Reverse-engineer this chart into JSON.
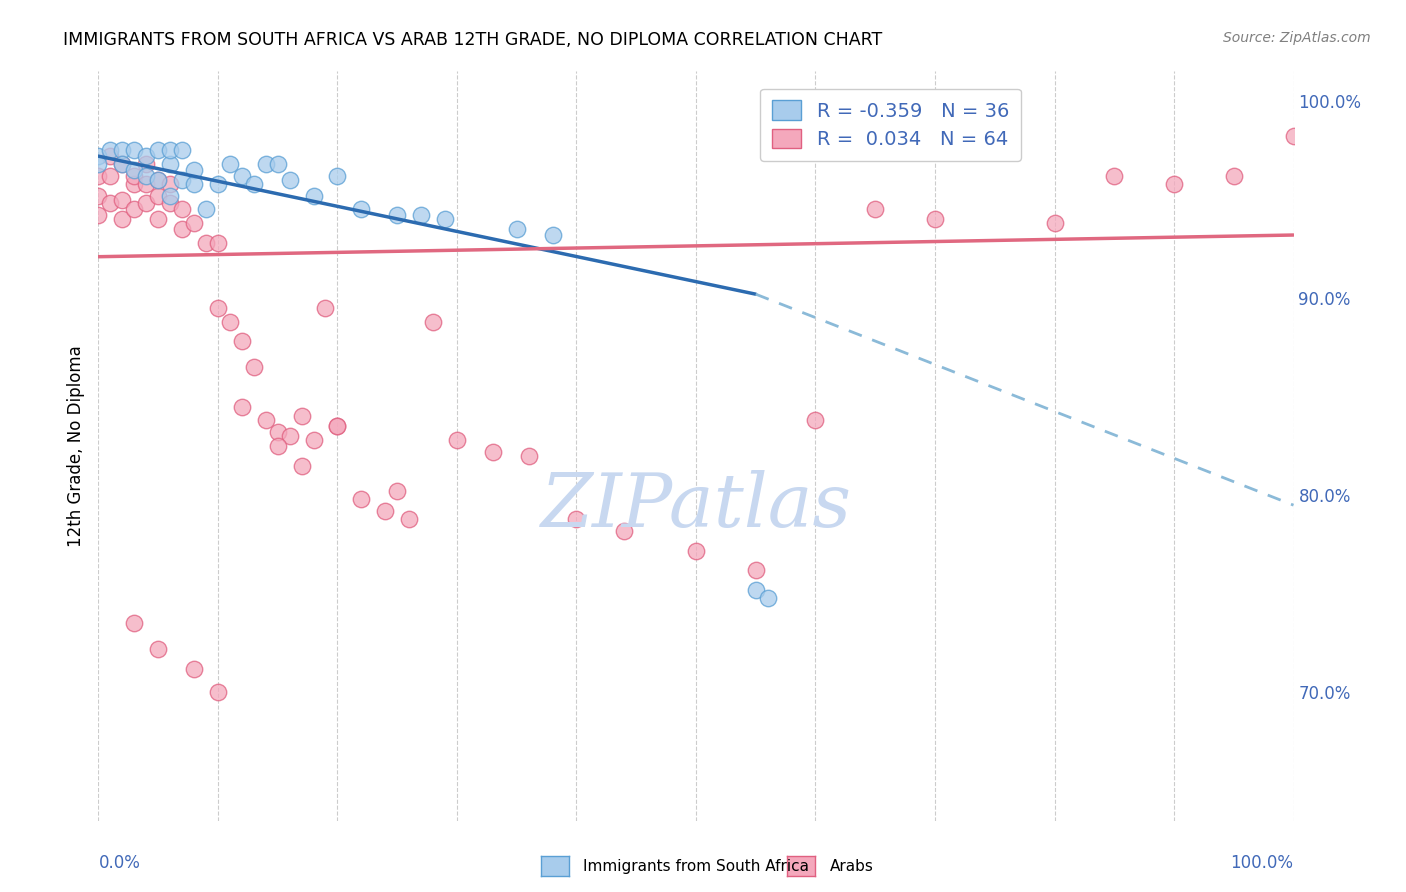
{
  "title": "IMMIGRANTS FROM SOUTH AFRICA VS ARAB 12TH GRADE, NO DIPLOMA CORRELATION CHART",
  "source": "Source: ZipAtlas.com",
  "ylabel": "12th Grade, No Diploma",
  "legend_label1": "Immigrants from South Africa",
  "legend_label2": "Arabs",
  "R1": -0.359,
  "N1": 36,
  "R2": 0.034,
  "N2": 64,
  "color_blue": "#A8CCEC",
  "color_pink": "#F4A8BC",
  "color_blue_line": "#5A9FD4",
  "color_pink_line": "#E06080",
  "color_blue_text": "#4169B8",
  "watermark_color": "#C8D8F0",
  "xlim": [
    0.0,
    1.0
  ],
  "ylim": [
    0.635,
    1.015
  ],
  "sa_line_x0": 0.0,
  "sa_line_y0": 0.972,
  "sa_line_x1": 0.55,
  "sa_line_y1": 0.902,
  "sa_line_dash_x1": 1.0,
  "sa_line_dash_y1": 0.795,
  "arab_line_x0": 0.0,
  "arab_line_y0": 0.921,
  "arab_line_x1": 1.0,
  "arab_line_y1": 0.932,
  "south_africa_x": [
    0.0,
    0.0,
    0.01,
    0.02,
    0.02,
    0.03,
    0.03,
    0.04,
    0.04,
    0.05,
    0.05,
    0.06,
    0.06,
    0.06,
    0.07,
    0.07,
    0.08,
    0.08,
    0.09,
    0.1,
    0.11,
    0.12,
    0.13,
    0.14,
    0.15,
    0.16,
    0.18,
    0.2,
    0.22,
    0.25,
    0.27,
    0.29,
    0.35,
    0.38,
    0.55,
    0.56
  ],
  "south_africa_y": [
    0.972,
    0.968,
    0.975,
    0.975,
    0.968,
    0.975,
    0.965,
    0.972,
    0.962,
    0.975,
    0.96,
    0.968,
    0.975,
    0.952,
    0.96,
    0.975,
    0.965,
    0.958,
    0.945,
    0.958,
    0.968,
    0.962,
    0.958,
    0.968,
    0.968,
    0.96,
    0.952,
    0.962,
    0.945,
    0.942,
    0.942,
    0.94,
    0.935,
    0.932,
    0.752,
    0.748
  ],
  "arab_x": [
    0.0,
    0.0,
    0.0,
    0.01,
    0.01,
    0.01,
    0.02,
    0.02,
    0.02,
    0.03,
    0.03,
    0.03,
    0.04,
    0.04,
    0.04,
    0.05,
    0.05,
    0.05,
    0.06,
    0.06,
    0.07,
    0.07,
    0.08,
    0.09,
    0.1,
    0.1,
    0.11,
    0.12,
    0.13,
    0.14,
    0.15,
    0.16,
    0.17,
    0.18,
    0.19,
    0.2,
    0.22,
    0.24,
    0.26,
    0.28,
    0.3,
    0.33,
    0.36,
    0.4,
    0.44,
    0.5,
    0.55,
    0.6,
    0.65,
    0.7,
    0.8,
    0.85,
    0.9,
    0.95,
    1.0,
    0.03,
    0.05,
    0.08,
    0.1,
    0.12,
    0.15,
    0.17,
    0.2,
    0.25
  ],
  "arab_y": [
    0.942,
    0.952,
    0.962,
    0.948,
    0.962,
    0.972,
    0.94,
    0.95,
    0.968,
    0.945,
    0.958,
    0.962,
    0.948,
    0.958,
    0.968,
    0.94,
    0.952,
    0.96,
    0.948,
    0.958,
    0.935,
    0.945,
    0.938,
    0.928,
    0.928,
    0.895,
    0.888,
    0.878,
    0.865,
    0.838,
    0.832,
    0.83,
    0.84,
    0.828,
    0.895,
    0.835,
    0.798,
    0.792,
    0.788,
    0.888,
    0.828,
    0.822,
    0.82,
    0.788,
    0.782,
    0.772,
    0.762,
    0.838,
    0.945,
    0.94,
    0.938,
    0.962,
    0.958,
    0.962,
    0.982,
    0.735,
    0.722,
    0.712,
    0.7,
    0.845,
    0.825,
    0.815,
    0.835,
    0.802
  ]
}
